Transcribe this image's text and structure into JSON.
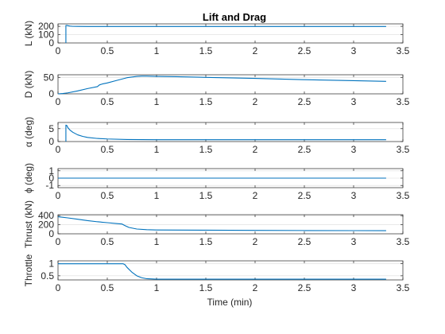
{
  "chart_data": {
    "type": "line",
    "title": "Lift and Drag",
    "xlabel": "Time (min)",
    "xlim": [
      0,
      3.5
    ],
    "xticks": [
      0,
      0.5,
      1,
      1.5,
      2,
      2.5,
      3,
      3.5
    ],
    "xtick_labels": [
      "0",
      "0.5",
      "1",
      "1.5",
      "2",
      "2.5",
      "3",
      "3.5"
    ],
    "color": "#0072BD",
    "subplots": [
      {
        "ylabel": "L (kN)",
        "ylim": [
          0,
          230
        ],
        "yticks": [
          0,
          100,
          200
        ],
        "ytick_labels": [
          "0",
          "100",
          "200"
        ],
        "ygrid": [
          100,
          200
        ],
        "x": [
          0.08,
          0.08,
          0.09,
          0.1,
          0.12,
          0.15,
          0.2,
          0.3,
          0.5,
          0.8,
          1.0,
          1.5,
          2.0,
          2.5,
          3.0,
          3.33
        ],
        "y": [
          0,
          210,
          212,
          208,
          203,
          200,
          199,
          198,
          198,
          198,
          198,
          198,
          198,
          198,
          198,
          198
        ]
      },
      {
        "ylabel": "D (kN)",
        "ylim": [
          0,
          58
        ],
        "yticks": [
          0,
          50
        ],
        "ytick_labels": [
          "0",
          "50"
        ],
        "ygrid": [
          50
        ],
        "x": [
          0,
          0.05,
          0.1,
          0.2,
          0.3,
          0.4,
          0.42,
          0.45,
          0.5,
          0.6,
          0.7,
          0.8,
          0.85,
          0.9,
          1.0,
          1.2,
          1.5,
          2.0,
          2.5,
          3.0,
          3.33
        ],
        "y": [
          0,
          1,
          3,
          9,
          16,
          22,
          27,
          30,
          33,
          41,
          49,
          53,
          54,
          54,
          53,
          52,
          50,
          47,
          43,
          40,
          38
        ]
      },
      {
        "ylabel": "α (deg)",
        "ylim": [
          0,
          7.4
        ],
        "yticks": [
          0,
          5
        ],
        "ytick_labels": [
          "0",
          "5"
        ],
        "ygrid": [
          5
        ],
        "x": [
          0.08,
          0.08,
          0.09,
          0.1,
          0.12,
          0.15,
          0.2,
          0.25,
          0.3,
          0.4,
          0.5,
          0.7,
          1.0,
          1.5,
          2.0,
          3.0,
          3.33
        ],
        "y": [
          0,
          6.4,
          6.2,
          5.4,
          4.5,
          3.6,
          2.6,
          2.0,
          1.6,
          1.2,
          1.0,
          0.8,
          0.7,
          0.7,
          0.7,
          0.7,
          0.7
        ]
      },
      {
        "ylabel": "ϕ (deg)",
        "ylim": [
          -1.3,
          1.3
        ],
        "yticks": [
          -1,
          0,
          1
        ],
        "ytick_labels": [
          "-1",
          "0",
          "1"
        ],
        "ygrid": [
          -1,
          0,
          1
        ],
        "x": [
          0,
          3.33
        ],
        "y": [
          0,
          0
        ]
      },
      {
        "ylabel": "Thrust (kN)",
        "ylim": [
          0,
          420
        ],
        "yticks": [
          0,
          200,
          400
        ],
        "ytick_labels": [
          "0",
          "200",
          "400"
        ],
        "ygrid": [
          200,
          400
        ],
        "x": [
          0,
          0.1,
          0.2,
          0.3,
          0.4,
          0.5,
          0.6,
          0.65,
          0.68,
          0.72,
          0.8,
          0.9,
          1.0,
          1.5,
          2.0,
          2.5,
          3.0,
          3.33
        ],
        "y": [
          375,
          350,
          320,
          290,
          265,
          245,
          225,
          215,
          180,
          140,
          105,
          90,
          85,
          80,
          75,
          72,
          70,
          68
        ]
      },
      {
        "ylabel": "Throttle",
        "ylim": [
          0.33,
          1.12
        ],
        "yticks": [
          0.5,
          1
        ],
        "ytick_labels": [
          "0.5",
          "1"
        ],
        "ygrid": [
          0.5,
          1
        ],
        "x": [
          0,
          0.3,
          0.5,
          0.66,
          0.68,
          0.7,
          0.75,
          0.8,
          0.85,
          0.9,
          1.0,
          1.5,
          2.0,
          2.5,
          3.0,
          3.33
        ],
        "y": [
          1,
          1,
          1,
          1,
          0.96,
          0.85,
          0.65,
          0.5,
          0.42,
          0.38,
          0.36,
          0.36,
          0.36,
          0.36,
          0.36,
          0.36
        ]
      }
    ]
  }
}
